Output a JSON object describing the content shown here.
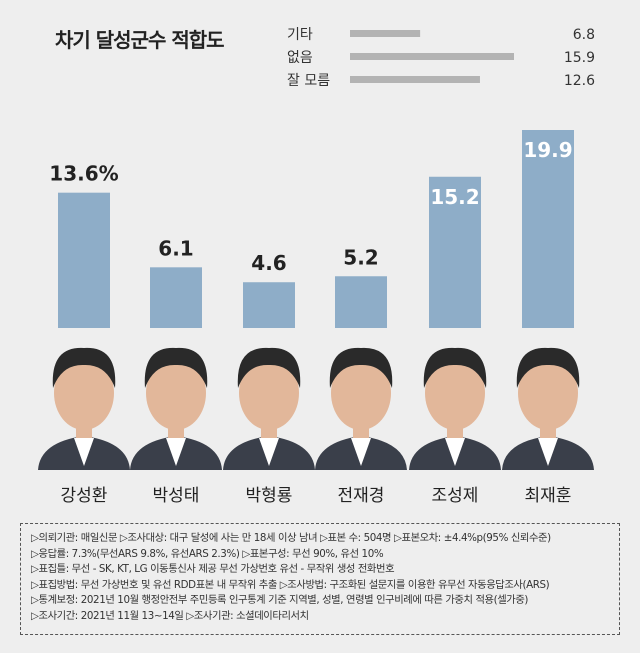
{
  "chart_data": [
    {
      "type": "bar",
      "title": "차기 달성군수 적합도",
      "categories": [
        "강성환",
        "박성태",
        "박형룡",
        "전재경",
        "조성제",
        "최재훈"
      ],
      "values": [
        13.6,
        6.1,
        4.6,
        5.2,
        15.2,
        19.9
      ],
      "value_labels": [
        "13.6%",
        "6.1",
        "4.6",
        "5.2",
        "15.2",
        "19.9"
      ],
      "ylim": [
        0,
        21
      ],
      "grid": false,
      "bar_color": "#8eadc8"
    },
    {
      "type": "bar",
      "orientation": "horizontal",
      "categories": [
        "기타",
        "없음",
        "잘 모름"
      ],
      "values": [
        6.8,
        15.9,
        12.6
      ],
      "value_labels": [
        "6.8",
        "15.9",
        "12.6"
      ],
      "bar_color": "#b3b3b3"
    }
  ],
  "notes": [
    "▷의뢰기관: 매일신문 ▷조사대상: 대구 달성에 사는 만 18세 이상 남녀 ▷표본 수: 504명 ▷표본오차: ±4.4%p(95% 신뢰수준)",
    "▷응답률: 7.3%(무선ARS 9.8%, 유선ARS 2.3%) ▷표본구성: 무선 90%, 유선 10%",
    "▷표집틀: 무선 - SK, KT, LG 이동통신사 제공 무선 가상번호 유선 - 무작위 생성 전화번호",
    "▷표집방법: 무선 가상번호 및 유선 RDD표본 내 무작위 추출 ▷조사방법: 구조화된 설문지를 이용한 유무선 자동응답조사(ARS)",
    "▷통계보정: 2021년 10월 행정안전부 주민등록 인구통계 기준 지역별, 성별, 연령별 인구비례에 따른 가중치 적용(셀가중)",
    "▷조사기간: 2021년 11월 13~14일 ▷조사기관: 소셜데이타리서치"
  ],
  "colors": {
    "background": "#eeeeee",
    "suit": "#3a3f4a",
    "skin": "#e2b79a",
    "hair": "#2a2a2a"
  }
}
